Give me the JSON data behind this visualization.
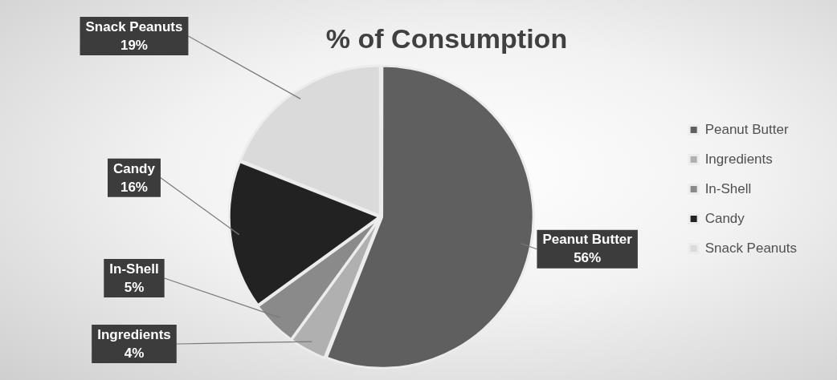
{
  "chart_data": {
    "type": "pie",
    "title": "% of Consumption",
    "categories": [
      "Peanut Butter",
      "Ingredients",
      "In-Shell",
      "Candy",
      "Snack Peanuts"
    ],
    "values": [
      56,
      4,
      5,
      16,
      19
    ],
    "colors": [
      "#5f5f5f",
      "#b0b0b0",
      "#8a8a8a",
      "#222222",
      "#dadada"
    ],
    "value_labels": [
      "56%",
      "4%",
      "5%",
      "16%",
      "19%"
    ],
    "legend": "right"
  }
}
